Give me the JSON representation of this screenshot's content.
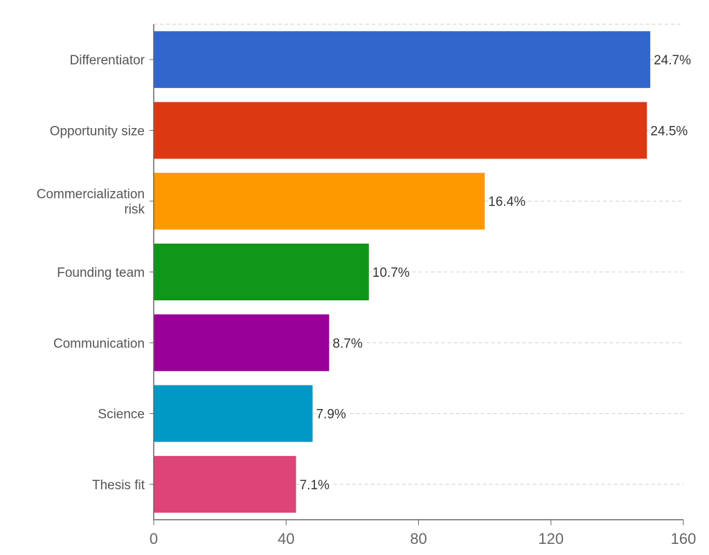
{
  "chart_data": {
    "type": "bar",
    "orientation": "horizontal",
    "categories": [
      "Differentiator",
      "Opportunity size",
      "Commercialization risk",
      "Founding team",
      "Communication",
      "Science",
      "Thesis fit"
    ],
    "category_lines": [
      [
        "Differentiator"
      ],
      [
        "Opportunity size"
      ],
      [
        "Commercialization",
        "risk"
      ],
      [
        "Founding team"
      ],
      [
        "Communication"
      ],
      [
        "Science"
      ],
      [
        "Thesis fit"
      ]
    ],
    "values": [
      150,
      149,
      100,
      65,
      53,
      48,
      43
    ],
    "data_labels": [
      "24.7%",
      "24.5%",
      "16.4%",
      "10.7%",
      "8.7%",
      "7.9%",
      "7.1%"
    ],
    "colors": [
      "#3366cc",
      "#dc3912",
      "#ff9900",
      "#109618",
      "#990099",
      "#0099c6",
      "#dd4477"
    ],
    "xlim": [
      0,
      160
    ],
    "xticks": [
      0,
      40,
      80,
      120,
      160
    ],
    "xtick_labels": [
      "0",
      "40",
      "80",
      "120",
      "160"
    ],
    "title": "",
    "xlabel": "",
    "ylabel": "",
    "grid": "dashed horizontal"
  }
}
